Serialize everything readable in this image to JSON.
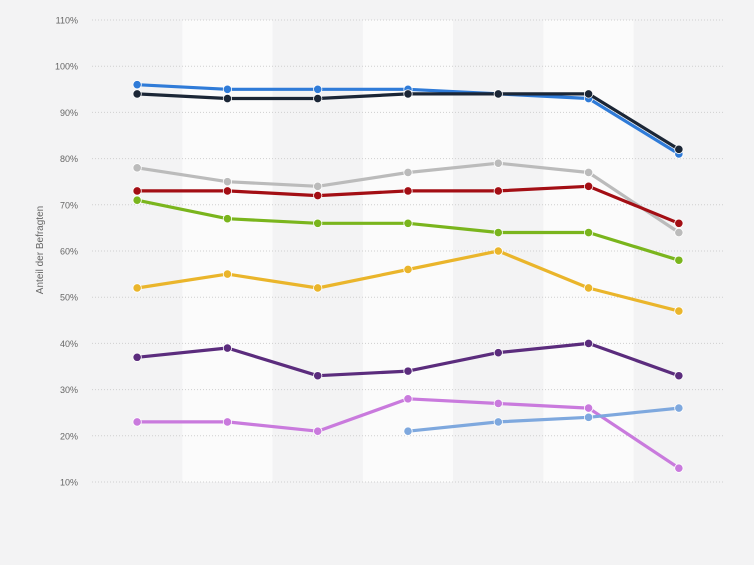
{
  "chart_data": {
    "type": "line",
    "title": "",
    "xlabel": "",
    "ylabel": "Anteil der Befragten",
    "ylim": [
      10,
      110
    ],
    "yticks": [
      10,
      20,
      30,
      40,
      50,
      60,
      70,
      80,
      90,
      100,
      110
    ],
    "ytick_labels": [
      "10%",
      "20%",
      "30%",
      "40%",
      "50%",
      "60%",
      "70%",
      "80%",
      "90%",
      "100%",
      "110%"
    ],
    "categories": [
      "",
      "",
      "",
      "",
      "",
      "",
      ""
    ],
    "grid": "horizontal-dotted",
    "alternating_column_bands": true,
    "series": [
      {
        "color": "#2f7bd8",
        "values": [
          96,
          95,
          95,
          95,
          94,
          93,
          81
        ]
      },
      {
        "color": "#1b2636",
        "values": [
          94,
          93,
          93,
          94,
          94,
          94,
          82
        ]
      },
      {
        "color": "#bbbbbb",
        "values": [
          78,
          75,
          74,
          77,
          79,
          77,
          64
        ]
      },
      {
        "color": "#a30e14",
        "values": [
          73,
          73,
          72,
          73,
          73,
          74,
          66
        ]
      },
      {
        "color": "#7ab51d",
        "values": [
          71,
          67,
          66,
          66,
          64,
          64,
          58
        ]
      },
      {
        "color": "#eab52b",
        "values": [
          52,
          55,
          52,
          56,
          60,
          52,
          47
        ]
      },
      {
        "color": "#5b2c7d",
        "values": [
          37,
          39,
          33,
          34,
          38,
          40,
          33
        ]
      },
      {
        "color": "#c97add",
        "values": [
          23,
          23,
          21,
          28,
          27,
          26,
          13
        ]
      },
      {
        "color": "#7ea8de",
        "values": [
          null,
          null,
          null,
          21,
          23,
          24,
          26
        ]
      }
    ]
  }
}
